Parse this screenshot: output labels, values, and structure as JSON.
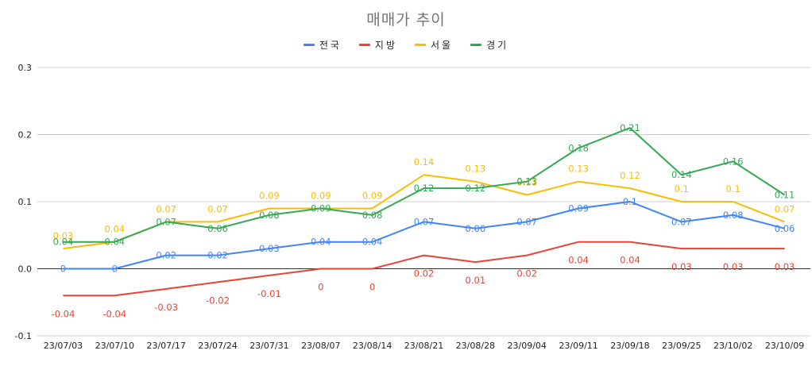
{
  "chart_data": {
    "type": "line",
    "title": "매매가 추이",
    "xlabel": "",
    "ylabel": "",
    "categories": [
      "23/07/03",
      "23/07/10",
      "23/07/17",
      "23/07/24",
      "23/07/31",
      "23/08/07",
      "23/08/14",
      "23/08/21",
      "23/08/28",
      "23/09/04",
      "23/09/11",
      "23/09/18",
      "23/09/25",
      "23/10/02",
      "23/10/09"
    ],
    "ylim": [
      -0.1,
      0.3
    ],
    "yticks": [
      "0.3",
      "0.2",
      "0.1",
      "0.0",
      "-0.1"
    ],
    "legend_position": "top",
    "grid": true,
    "series": [
      {
        "name": "전국",
        "color": "#4285f4",
        "values": [
          0,
          0,
          0.02,
          0.02,
          0.03,
          0.04,
          0.04,
          0.07,
          0.06,
          0.07,
          0.09,
          0.1,
          0.07,
          0.08,
          0.06
        ],
        "labels": [
          "0",
          "0",
          "0.02",
          "0.02",
          "0.03",
          "0.04",
          "0.04",
          "0.07",
          "0.06",
          "0.07",
          "0.09",
          "0.1",
          "0.07",
          "0.08",
          "0.06"
        ]
      },
      {
        "name": "지방",
        "color": "#ea4335",
        "values": [
          -0.04,
          -0.04,
          -0.03,
          -0.02,
          -0.01,
          0,
          0,
          0.02,
          0.01,
          0.02,
          0.04,
          0.04,
          0.03,
          0.03,
          0.03
        ],
        "labels": [
          "-0.04",
          "-0.04",
          "-0.03",
          "-0.02",
          "-0.01",
          "0",
          "0",
          "0.02",
          "0.01",
          "0.02",
          "0.04",
          "0.04",
          "0.03",
          "0.03",
          "0.03"
        ]
      },
      {
        "name": "서울",
        "color": "#fbbc04",
        "values": [
          0.03,
          0.04,
          0.07,
          0.07,
          0.09,
          0.09,
          0.09,
          0.14,
          0.13,
          0.11,
          0.13,
          0.12,
          0.1,
          0.1,
          0.07
        ],
        "labels": [
          "0.03",
          "0.04",
          "0.07",
          "0.07",
          "0.09",
          "0.09",
          "0.09",
          "0.14",
          "0.13",
          "0.11",
          "0.13",
          "0.12",
          "0.1",
          "0.1",
          "0.07"
        ]
      },
      {
        "name": "경기",
        "color": "#34a853",
        "values": [
          0.04,
          0.04,
          0.07,
          0.06,
          0.08,
          0.09,
          0.08,
          0.12,
          0.12,
          0.13,
          0.18,
          0.21,
          0.14,
          0.16,
          0.11
        ],
        "labels": [
          "0.04",
          "0.04",
          "0.07",
          "0.06",
          "0.08",
          "0.09",
          "0.08",
          "0.12",
          "0.12",
          "0.13",
          "0.18",
          "0.21",
          "0.14",
          "0.16",
          "0.11"
        ]
      }
    ]
  }
}
